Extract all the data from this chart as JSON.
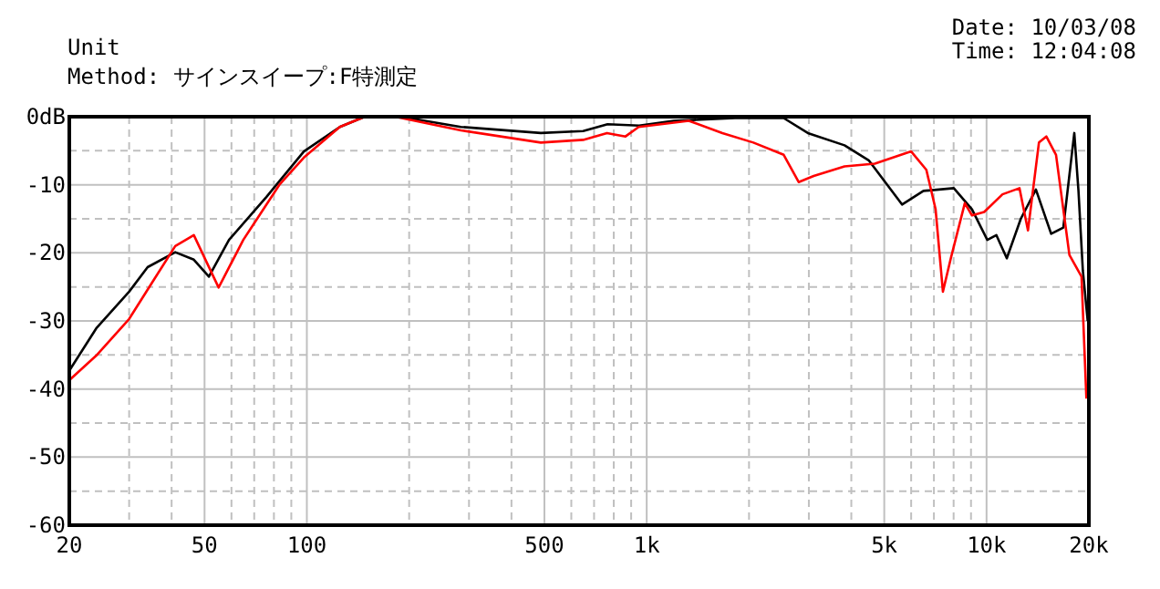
{
  "chart_data": {
    "type": "line",
    "annotations": [
      "Unit",
      "Method: サインスイープ:F特測定",
      "Date: 10/03/08",
      "Time: 12:04:08"
    ],
    "log": "x",
    "grid": true,
    "line_style": "solid",
    "xlim": [
      20,
      20000
    ],
    "xticks": [
      20,
      {
        "value": 30,
        "label": null
      },
      {
        "value": 40,
        "label": null
      },
      50,
      {
        "value": 60,
        "label": null
      },
      {
        "value": 70,
        "label": null
      },
      {
        "value": 80,
        "label": null
      },
      {
        "value": 90,
        "label": null
      },
      100,
      {
        "value": 200,
        "label": null
      },
      {
        "value": 300,
        "label": null
      },
      {
        "value": 400,
        "label": null
      },
      500,
      {
        "value": 600,
        "label": null
      },
      {
        "value": 700,
        "label": null
      },
      {
        "value": 800,
        "label": null
      },
      {
        "value": 900,
        "label": null
      },
      {
        "value": 1000,
        "label": "1k"
      },
      {
        "value": 2000,
        "label": null
      },
      {
        "value": 3000,
        "label": null
      },
      {
        "value": 4000,
        "label": null
      },
      {
        "value": 5000,
        "label": "5k"
      },
      {
        "value": 6000,
        "label": null
      },
      {
        "value": 7000,
        "label": null
      },
      {
        "value": 8000,
        "label": null
      },
      {
        "value": 9000,
        "label": null
      },
      {
        "value": 10000,
        "label": "10k"
      },
      {
        "value": 20000,
        "label": "20k"
      }
    ],
    "ylim": [
      -60,
      0
    ],
    "yticks": [
      {
        "value": 0,
        "label": "0dB"
      },
      {
        "value": -5,
        "label": null
      },
      -10,
      {
        "value": -15,
        "label": null
      },
      -20,
      {
        "value": -25,
        "label": null
      },
      -30,
      {
        "value": -35,
        "label": null
      },
      -40,
      {
        "value": -45,
        "label": null
      },
      -50,
      {
        "value": -55,
        "label": null
      },
      -60
    ],
    "series": [
      {
        "color": "#000000",
        "x": [
          20,
          24,
          30,
          34,
          41,
          46.5,
          51.5,
          59,
          76,
          98,
          125,
          148,
          189,
          284,
          488,
          650,
          767,
          950,
          1200,
          1820,
          2530,
          2980,
          3820,
          4500,
          5640,
          6520,
          8010,
          9060,
          10050,
          10690,
          11470,
          12610,
          13970,
          15490,
          16820,
          18120,
          18640,
          19200,
          19840
        ],
        "values": [
          -37.3,
          -31.1,
          -25.7,
          -22.1,
          -19.9,
          -21,
          -23.5,
          -18.1,
          -11.8,
          -5.1,
          -1.5,
          0,
          0,
          -1.5,
          -2.4,
          -2.1,
          -1.1,
          -1.3,
          -0.6,
          -0.2,
          -0.2,
          -2.4,
          -4.2,
          -6.4,
          -12.9,
          -10.9,
          -10.5,
          -13.6,
          -18.1,
          -17.4,
          -20.8,
          -15,
          -10.7,
          -17.2,
          -16.3,
          -2.4,
          -10.9,
          -22.6,
          -30
        ]
      },
      {
        "color": "#ff0000",
        "x": [
          20,
          24,
          30,
          35,
          41,
          46.5,
          55,
          65,
          83,
          98,
          125,
          148,
          182,
          284,
          488,
          650,
          764,
          866,
          947,
          1330,
          1670,
          2060,
          2530,
          2800,
          3100,
          3820,
          4690,
          6000,
          6650,
          7080,
          7440,
          7850,
          8630,
          9060,
          9840,
          11140,
          12500,
          13240,
          14260,
          14990,
          16010,
          17530,
          19030,
          19670
        ],
        "values": [
          -38.7,
          -35.1,
          -29.7,
          -24.4,
          -19,
          -17.4,
          -25.1,
          -18.1,
          -10,
          -6,
          -1.5,
          0,
          0,
          -2,
          -3.8,
          -3.4,
          -2.4,
          -2.9,
          -1.5,
          -0.6,
          -2.4,
          -3.8,
          -5.6,
          -9.6,
          -8.7,
          -7.3,
          -6.9,
          -5.1,
          -7.8,
          -13.6,
          -25.7,
          -20.8,
          -12.7,
          -14.5,
          -14,
          -11.4,
          -10.5,
          -16.7,
          -3.8,
          -2.9,
          -5.6,
          -20.3,
          -23.5,
          -41.4
        ]
      }
    ]
  }
}
